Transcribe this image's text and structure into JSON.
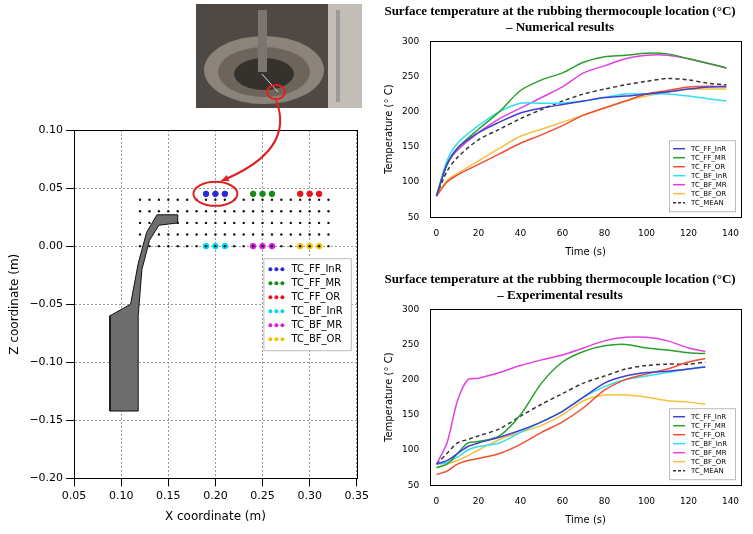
{
  "chart_data": [
    {
      "type": "scatter",
      "xlabel": "X coordinate (m)",
      "ylabel": "Z coordinate (m)",
      "xlim": [
        0.05,
        0.35
      ],
      "ylim": [
        -0.2,
        0.1
      ],
      "xticks": [
        0.05,
        {
          "value": 0.1,
          "label": "0.10"
        },
        0.15,
        {
          "value": 0.2,
          "label": "0.20"
        },
        0.25,
        {
          "value": 0.3,
          "label": "0.30"
        },
        0.35
      ],
      "yticks": [
        {
          "value": -0.2,
          "label": "−0.20"
        },
        {
          "value": -0.15,
          "label": "−0.15"
        },
        {
          "value": -0.1,
          "label": "−0.10"
        },
        {
          "value": -0.05,
          "label": "−0.05"
        },
        {
          "value": 0,
          "label": "0.00"
        },
        0.05,
        {
          "value": 0.1,
          "label": "0.10"
        }
      ],
      "grid": true,
      "legend": "center right",
      "marker": "dot",
      "hub_outline": {
        "x": [
          0.088,
          0.118,
          0.118,
          0.122,
          0.13,
          0.14,
          0.16,
          0.16,
          0.138,
          0.127,
          0.118,
          0.11,
          0.088
        ],
        "z": [
          -0.142,
          -0.142,
          -0.06,
          -0.02,
          0.005,
          0.018,
          0.02,
          0.027,
          0.027,
          0.012,
          -0.015,
          -0.05,
          -0.06
        ]
      },
      "disc_mesh": {
        "x": [
          0.12,
          0.13,
          0.14,
          0.15,
          0.16,
          0.17,
          0.18,
          0.19,
          0.2,
          0.21,
          0.22,
          0.23,
          0.24,
          0.25,
          0.26,
          0.27,
          0.28,
          0.29,
          0.3,
          0.31,
          0.32
        ],
        "z": [
          0,
          0.01,
          0.02,
          0.03,
          0.04
        ]
      },
      "series": [
        {
          "name": "TC_FF_InR",
          "color": "#2a2ad8",
          "x": [
            0.19,
            0.2,
            0.21
          ],
          "values": [
            0.045,
            0.045,
            0.045
          ]
        },
        {
          "name": "TC_FF_MR",
          "color": "#1a8a1a",
          "x": [
            0.24,
            0.25,
            0.26
          ],
          "values": [
            0.045,
            0.045,
            0.045
          ]
        },
        {
          "name": "TC_FF_OR",
          "color": "#e8141e",
          "x": [
            0.29,
            0.3,
            0.31
          ],
          "values": [
            0.045,
            0.045,
            0.045
          ]
        },
        {
          "name": "TC_BF_InR",
          "color": "#00d8ec",
          "x": [
            0.19,
            0.2,
            0.21
          ],
          "values": [
            0,
            0,
            0
          ]
        },
        {
          "name": "TC_BF_MR",
          "color": "#e020e0",
          "x": [
            0.24,
            0.25,
            0.26
          ],
          "values": [
            0,
            0,
            0
          ]
        },
        {
          "name": "TC_BF_OR",
          "color": "#f2c200",
          "x": [
            0.29,
            0.3,
            0.31
          ],
          "values": [
            0,
            0,
            0
          ]
        }
      ]
    },
    {
      "type": "line",
      "title": "Surface temperature at the rubbing thermocouple location (°C) – Numerical results",
      "xlabel": "Time (s)",
      "ylabel": "Temperature (° C)",
      "xlim": [
        -3,
        145
      ],
      "ylim": [
        50,
        300
      ],
      "xticks": [
        0,
        20,
        40,
        60,
        80,
        100,
        120,
        140
      ],
      "yticks": [
        50,
        100,
        150,
        200,
        250,
        300
      ],
      "grid": false,
      "legend": "lower right",
      "marker": "line",
      "x": [
        0,
        5,
        10,
        20,
        30,
        40,
        50,
        60,
        70,
        80,
        90,
        100,
        110,
        120,
        130,
        138
      ],
      "series": [
        {
          "name": "TC_FF_InR",
          "color": "#3f3fd0",
          "line_style": "solid",
          "values": [
            80,
            125,
            148,
            170,
            185,
            198,
            205,
            210,
            215,
            220,
            222,
            225,
            228,
            232,
            235,
            236
          ]
        },
        {
          "name": "TC_FF_MR",
          "color": "#2aa02a",
          "line_style": "solid",
          "values": [
            80,
            125,
            148,
            175,
            200,
            230,
            245,
            255,
            270,
            278,
            280,
            283,
            282,
            275,
            268,
            262
          ]
        },
        {
          "name": "TC_FF_OR",
          "color": "#f05030",
          "line_style": "solid",
          "values": [
            80,
            100,
            110,
            125,
            140,
            155,
            167,
            180,
            195,
            205,
            215,
            225,
            230,
            235,
            236,
            235
          ]
        },
        {
          "name": "TC_BF_InR",
          "color": "#30e0f0",
          "line_style": "solid",
          "values": [
            80,
            130,
            155,
            180,
            200,
            212,
            212,
            212,
            215,
            220,
            225,
            225,
            225,
            222,
            218,
            215
          ]
        },
        {
          "name": "TC_BF_MR",
          "color": "#e040e0",
          "line_style": "solid",
          "values": [
            80,
            125,
            145,
            170,
            190,
            205,
            220,
            235,
            255,
            265,
            275,
            280,
            280,
            275,
            268,
            262
          ]
        },
        {
          "name": "TC_BF_OR",
          "color": "#f5c040",
          "line_style": "solid",
          "values": [
            80,
            102,
            112,
            130,
            148,
            165,
            175,
            185,
            195,
            205,
            215,
            222,
            228,
            232,
            232,
            232
          ]
        },
        {
          "name": "TC_MEAN",
          "color": "#333333",
          "line_style": "dashed",
          "values": [
            80,
            115,
            135,
            160,
            175,
            190,
            203,
            215,
            225,
            232,
            238,
            243,
            247,
            245,
            240,
            238
          ]
        }
      ]
    },
    {
      "type": "line",
      "title": "Surface temperature at the rubbing thermocouple location (°C) – Experimental results",
      "xlabel": "Time (s)",
      "ylabel": "Temperature (° C)",
      "xlim": [
        -3,
        145
      ],
      "ylim": [
        50,
        300
      ],
      "xticks": [
        0,
        20,
        40,
        60,
        80,
        100,
        120,
        140
      ],
      "yticks": [
        50,
        100,
        150,
        200,
        250,
        300
      ],
      "grid": false,
      "legend": "lower right",
      "marker": "line",
      "x": [
        0,
        5,
        10,
        15,
        20,
        30,
        40,
        50,
        60,
        70,
        80,
        90,
        100,
        110,
        120,
        128
      ],
      "series": [
        {
          "name": "TC_FF_InR",
          "color": "#3f3fd0",
          "line_style": "solid",
          "values": [
            80,
            85,
            95,
            105,
            110,
            118,
            128,
            140,
            155,
            175,
            195,
            205,
            210,
            212,
            215,
            218
          ]
        },
        {
          "name": "TC_FF_MR",
          "color": "#2aa02a",
          "line_style": "solid",
          "values": [
            75,
            80,
            95,
            110,
            112,
            120,
            150,
            195,
            225,
            240,
            248,
            250,
            245,
            242,
            238,
            237
          ]
        },
        {
          "name": "TC_FF_OR",
          "color": "#f05030",
          "line_style": "solid",
          "values": [
            65,
            70,
            80,
            85,
            88,
            95,
            108,
            125,
            140,
            160,
            185,
            200,
            208,
            215,
            225,
            230
          ]
        },
        {
          "name": "TC_BF_InR",
          "color": "#30e0f0",
          "line_style": "solid",
          "values": [
            80,
            82,
            90,
            100,
            105,
            110,
            125,
            140,
            155,
            175,
            190,
            200,
            205,
            210,
            215,
            218
          ]
        },
        {
          "name": "TC_BF_MR",
          "color": "#e040e0",
          "line_style": "solid",
          "values": [
            80,
            110,
            170,
            200,
            202,
            210,
            220,
            228,
            235,
            245,
            255,
            260,
            260,
            255,
            245,
            240
          ]
        },
        {
          "name": "TC_BF_OR",
          "color": "#f5c040",
          "line_style": "solid",
          "values": [
            75,
            80,
            85,
            92,
            100,
            115,
            125,
            135,
            150,
            170,
            178,
            178,
            175,
            170,
            168,
            165
          ]
        },
        {
          "name": "TC_MEAN",
          "color": "#333333",
          "line_style": "dashed",
          "values": [
            80,
            95,
            110,
            115,
            120,
            130,
            148,
            165,
            180,
            195,
            205,
            215,
            220,
            222,
            222,
            225
          ]
        }
      ]
    }
  ]
}
